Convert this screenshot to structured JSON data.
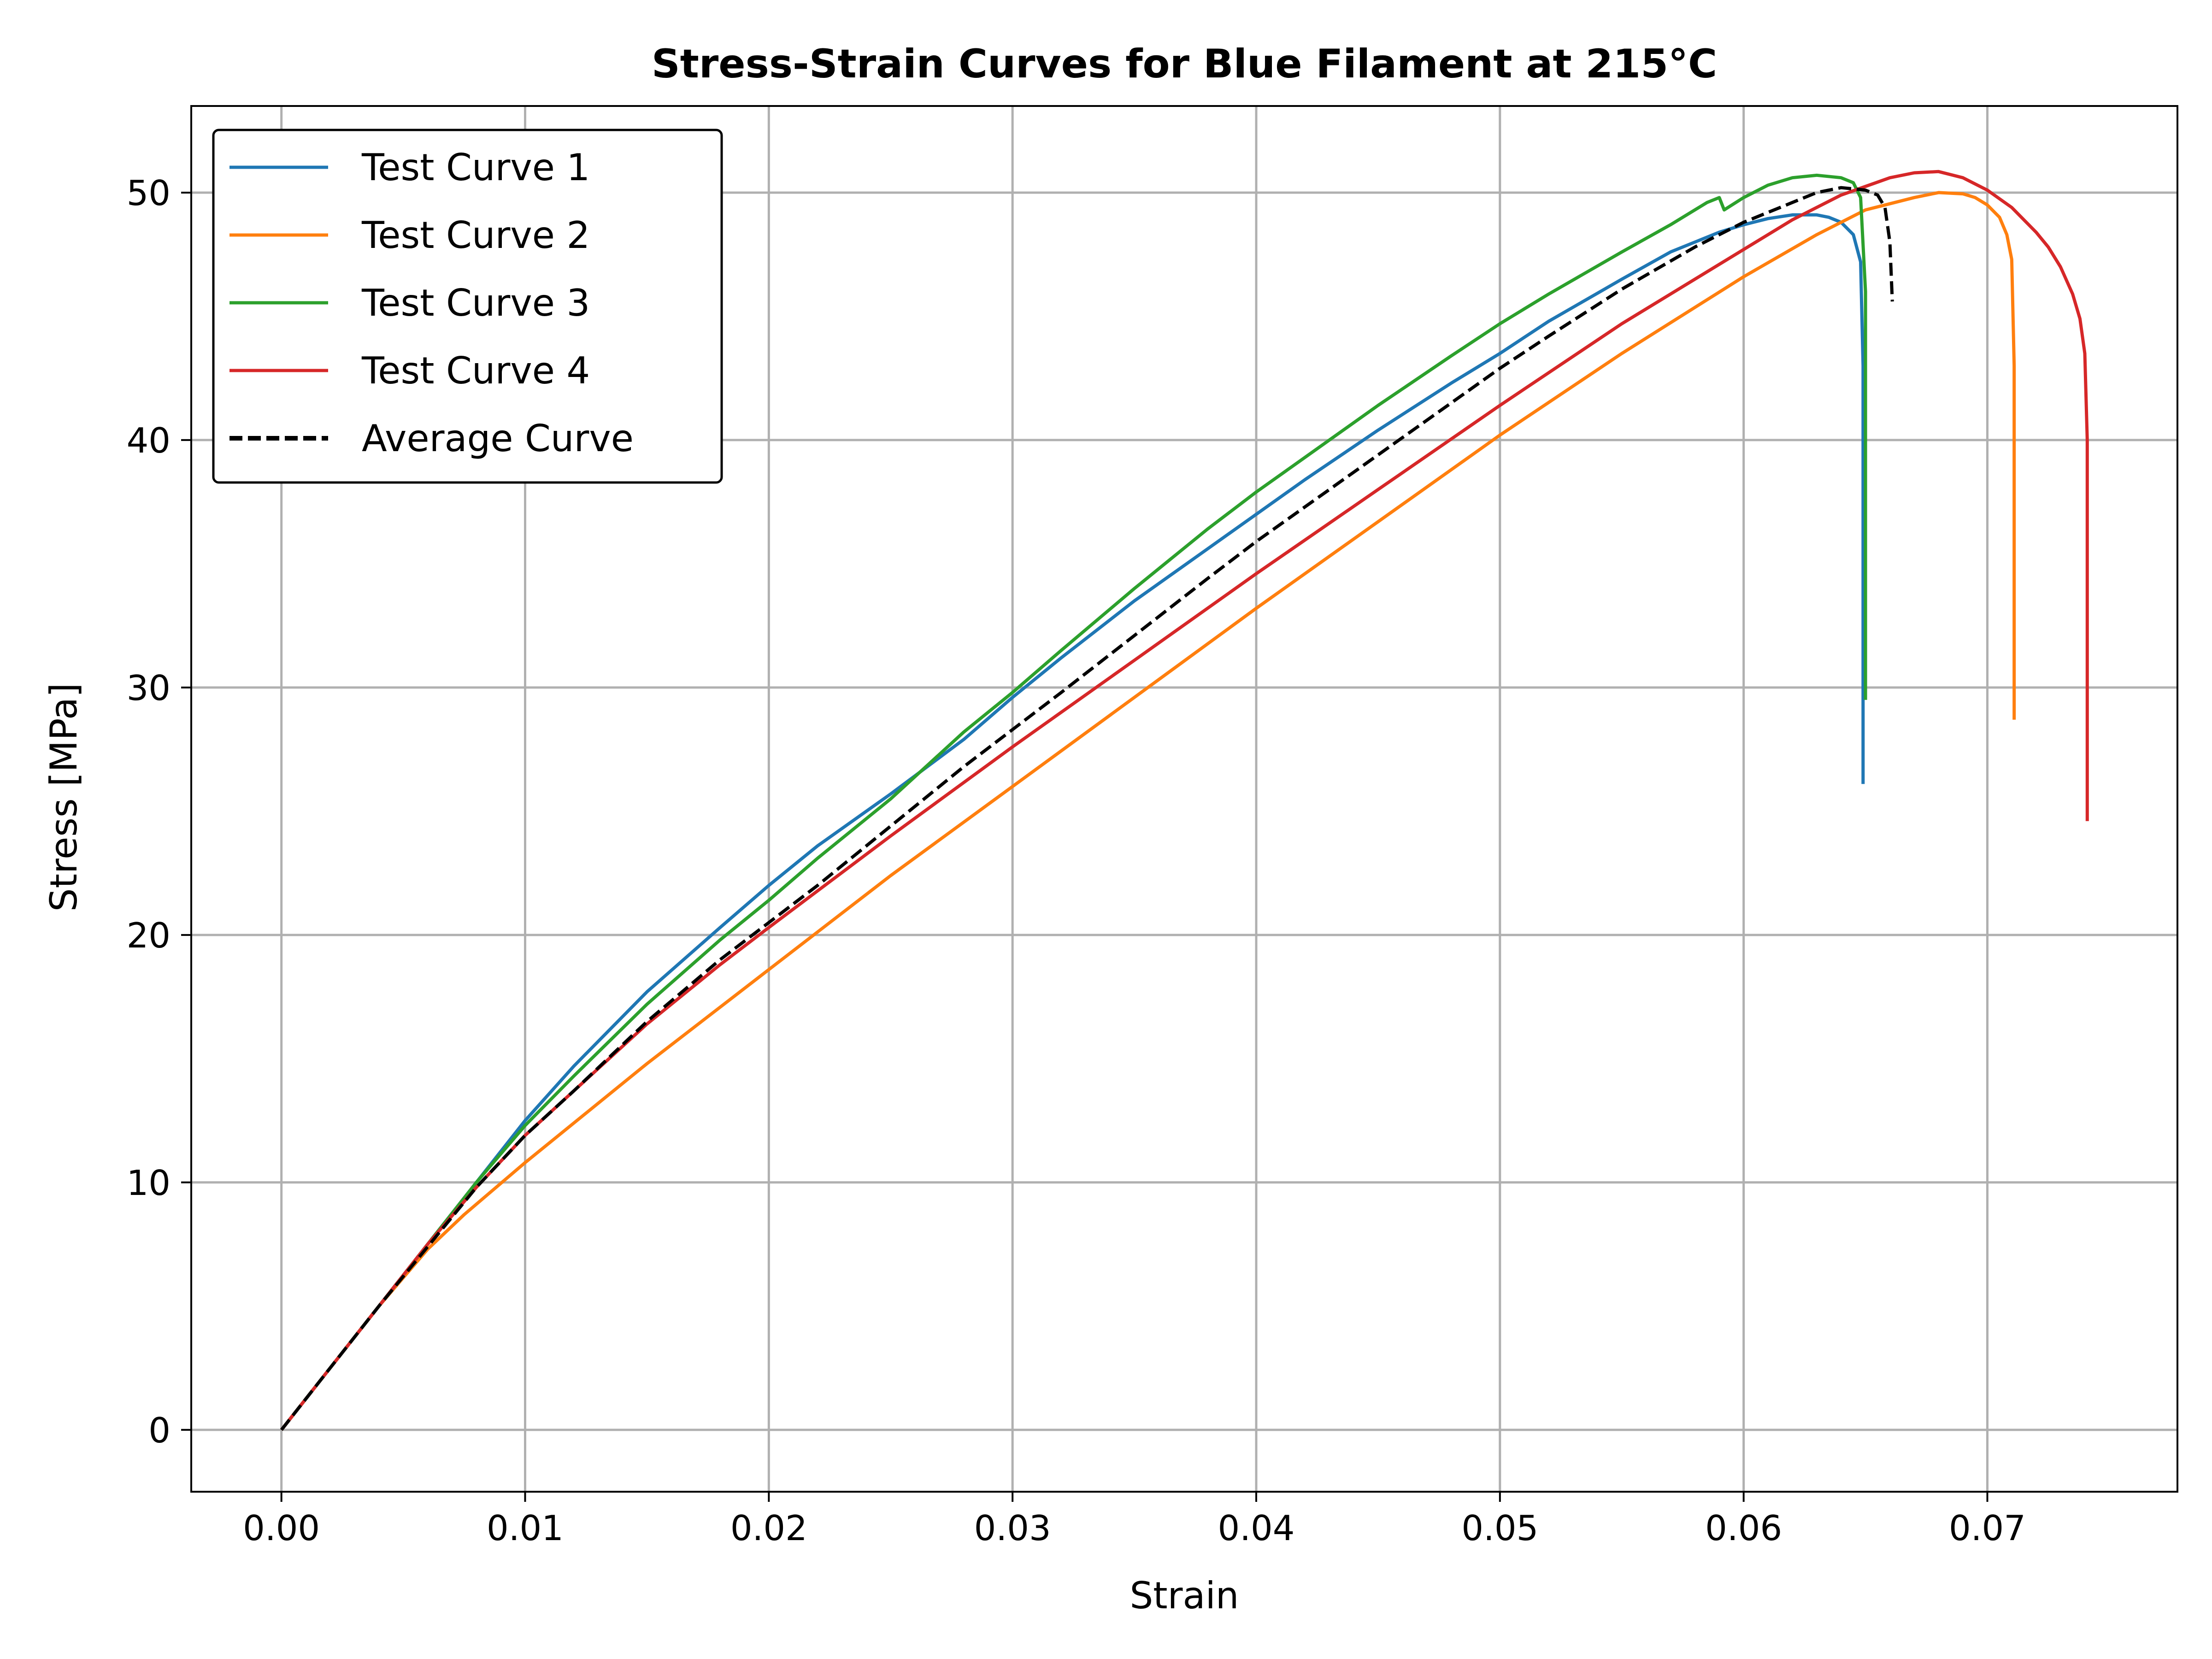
{
  "chart_data": {
    "type": "line",
    "title": "Stress-Strain Curves for Blue Filament at 215°C",
    "xlabel": "Strain",
    "ylabel": "Stress [MPa]",
    "xlim": [
      -0.0037,
      0.0778
    ],
    "ylim": [
      -2.5,
      53.5
    ],
    "xticks": [
      0.0,
      0.01,
      0.02,
      0.03,
      0.04,
      0.05,
      0.06,
      0.07
    ],
    "xtick_labels": [
      "0.00",
      "0.01",
      "0.02",
      "0.03",
      "0.04",
      "0.05",
      "0.06",
      "0.07"
    ],
    "yticks": [
      0,
      10,
      20,
      30,
      40,
      50
    ],
    "ytick_labels": [
      "0",
      "10",
      "20",
      "30",
      "40",
      "50"
    ],
    "grid": true,
    "legend_position": "top-left",
    "series": [
      {
        "name": "Test Curve 1",
        "color": "#1f77b4",
        "dash": "solid",
        "x": [
          0,
          0.002,
          0.004,
          0.006,
          0.008,
          0.01,
          0.012,
          0.015,
          0.018,
          0.02,
          0.022,
          0.025,
          0.028,
          0.03,
          0.032,
          0.035,
          0.038,
          0.04,
          0.042,
          0.045,
          0.048,
          0.05,
          0.052,
          0.055,
          0.057,
          0.059,
          0.06,
          0.061,
          0.062,
          0.063,
          0.0635,
          0.064,
          0.0645,
          0.0648,
          0.0649,
          0.0649,
          0.0649
        ],
        "y": [
          0,
          2.5,
          5.0,
          7.5,
          10.0,
          12.5,
          14.7,
          17.7,
          20.3,
          22.0,
          23.6,
          25.7,
          27.9,
          29.6,
          31.2,
          33.5,
          35.6,
          37.0,
          38.4,
          40.4,
          42.3,
          43.5,
          44.8,
          46.5,
          47.6,
          48.4,
          48.7,
          48.95,
          49.1,
          49.1,
          49.0,
          48.8,
          48.3,
          47.2,
          43.0,
          35.0,
          26.1
        ]
      },
      {
        "name": "Test Curve 2",
        "color": "#ff7f0e",
        "dash": "solid",
        "x": [
          0,
          0.002,
          0.004,
          0.006,
          0.0075,
          0.01,
          0.015,
          0.02,
          0.025,
          0.03,
          0.035,
          0.04,
          0.045,
          0.05,
          0.055,
          0.06,
          0.063,
          0.065,
          0.067,
          0.068,
          0.069,
          0.0695,
          0.07,
          0.0705,
          0.0708,
          0.071,
          0.0711,
          0.0711,
          0.0711
        ],
        "y": [
          0,
          2.5,
          5.0,
          7.3,
          8.7,
          10.8,
          14.8,
          18.6,
          22.4,
          26.0,
          29.6,
          33.2,
          36.7,
          40.2,
          43.5,
          46.6,
          48.3,
          49.3,
          49.8,
          50.0,
          49.95,
          49.8,
          49.5,
          49.0,
          48.3,
          47.3,
          43.0,
          35.0,
          28.7
        ]
      },
      {
        "name": "Test Curve 3",
        "color": "#2ca02c",
        "dash": "solid",
        "x": [
          0,
          0.002,
          0.004,
          0.006,
          0.008,
          0.01,
          0.012,
          0.015,
          0.018,
          0.02,
          0.022,
          0.025,
          0.028,
          0.03,
          0.032,
          0.035,
          0.038,
          0.04,
          0.042,
          0.045,
          0.048,
          0.05,
          0.052,
          0.055,
          0.057,
          0.0585,
          0.059,
          0.0592,
          0.06,
          0.061,
          0.062,
          0.063,
          0.064,
          0.0645,
          0.0648,
          0.065,
          0.065,
          0.065
        ],
        "y": [
          0,
          2.5,
          5.0,
          7.5,
          10.0,
          12.3,
          14.3,
          17.2,
          19.8,
          21.4,
          23.1,
          25.5,
          28.2,
          29.8,
          31.5,
          34.0,
          36.4,
          37.9,
          39.3,
          41.4,
          43.4,
          44.7,
          45.9,
          47.6,
          48.7,
          49.6,
          49.8,
          49.3,
          49.8,
          50.3,
          50.6,
          50.7,
          50.6,
          50.4,
          49.8,
          46.0,
          38.0,
          29.5
        ]
      },
      {
        "name": "Test Curve 4",
        "color": "#d62728",
        "dash": "solid",
        "x": [
          0,
          0.002,
          0.004,
          0.006,
          0.008,
          0.01,
          0.012,
          0.015,
          0.018,
          0.02,
          0.025,
          0.03,
          0.035,
          0.04,
          0.045,
          0.05,
          0.055,
          0.06,
          0.062,
          0.064,
          0.066,
          0.067,
          0.068,
          0.069,
          0.07,
          0.071,
          0.072,
          0.0725,
          0.073,
          0.0735,
          0.0738,
          0.074,
          0.0741,
          0.0741,
          0.0741
        ],
        "y": [
          0,
          2.5,
          5.0,
          7.5,
          9.8,
          11.9,
          13.7,
          16.4,
          18.8,
          20.3,
          24.0,
          27.6,
          31.1,
          34.6,
          38.0,
          41.4,
          44.7,
          47.7,
          48.9,
          49.9,
          50.6,
          50.8,
          50.85,
          50.6,
          50.1,
          49.4,
          48.4,
          47.8,
          47.0,
          45.9,
          44.9,
          43.5,
          40.0,
          32.0,
          24.6
        ]
      },
      {
        "name": "Average Curve",
        "color": "#000000",
        "dash": "dashed",
        "x": [
          0,
          0.002,
          0.004,
          0.006,
          0.008,
          0.01,
          0.012,
          0.015,
          0.018,
          0.02,
          0.022,
          0.025,
          0.028,
          0.03,
          0.032,
          0.035,
          0.038,
          0.04,
          0.042,
          0.045,
          0.048,
          0.05,
          0.052,
          0.055,
          0.058,
          0.06,
          0.062,
          0.063,
          0.064,
          0.065,
          0.0655,
          0.0658,
          0.066,
          0.0661
        ],
        "y": [
          0,
          2.5,
          5.0,
          7.4,
          9.8,
          11.9,
          13.7,
          16.5,
          19.0,
          20.5,
          22.0,
          24.4,
          26.8,
          28.3,
          29.8,
          32.1,
          34.4,
          35.9,
          37.3,
          39.4,
          41.5,
          42.9,
          44.2,
          46.1,
          47.8,
          48.8,
          49.6,
          50.0,
          50.2,
          50.1,
          49.9,
          49.4,
          48.0,
          45.6
        ]
      }
    ]
  }
}
